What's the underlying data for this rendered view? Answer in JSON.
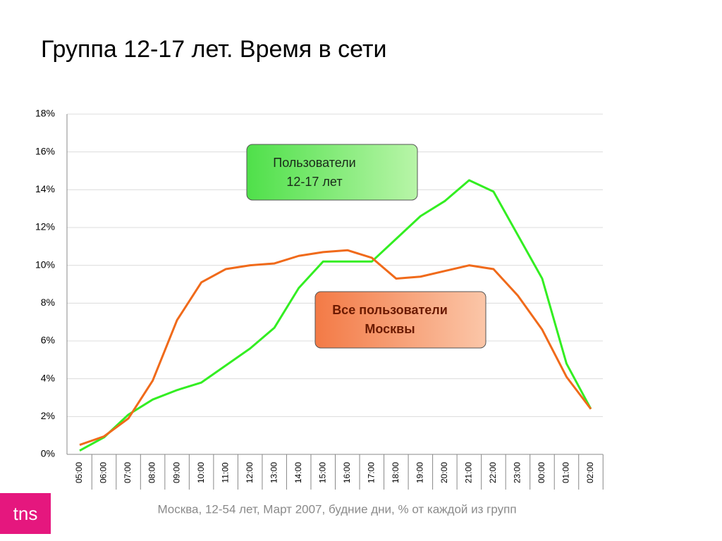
{
  "chart_data": {
    "type": "line",
    "title": "Группа 12-17 лет. Время в сети",
    "footnote": "Москва, 12-54 лет, Март 2007, будние дни, % от каждой из групп",
    "logo": "tns",
    "categories": [
      "05:00",
      "06:00",
      "07:00",
      "08:00",
      "09:00",
      "10:00",
      "11:00",
      "12:00",
      "13:00",
      "14:00",
      "15:00",
      "16:00",
      "17:00",
      "18:00",
      "19:00",
      "20:00",
      "21:00",
      "22:00",
      "23:00",
      "00:00",
      "01:00",
      "02:00"
    ],
    "series": [
      {
        "name": "Пользователи 12-17 лет",
        "color": "#33ee22",
        "values": [
          0.2,
          0.9,
          2.1,
          2.9,
          3.4,
          3.8,
          4.7,
          5.6,
          6.7,
          8.8,
          10.2,
          10.2,
          10.2,
          11.4,
          12.6,
          13.4,
          14.5,
          13.9,
          11.6,
          9.3,
          4.8,
          2.4
        ]
      },
      {
        "name": "Все пользователи Москвы",
        "color": "#f06a1a",
        "values": [
          0.5,
          0.95,
          1.9,
          3.9,
          7.1,
          9.1,
          9.8,
          10.0,
          10.1,
          10.5,
          10.7,
          10.8,
          10.4,
          9.3,
          9.4,
          9.7,
          10.0,
          9.8,
          8.4,
          6.6,
          4.1,
          2.4
        ]
      }
    ],
    "annotations": [
      {
        "lines": [
          "Пользователи",
          "12-17 лет"
        ],
        "color": "#33ee22"
      },
      {
        "lines": [
          "Все пользователи",
          "Москвы"
        ],
        "color": "#f06a1a"
      }
    ],
    "ylim": [
      0,
      18
    ],
    "yticks": [
      {
        "value": 0,
        "label": "0%"
      },
      {
        "value": 2,
        "label": "2%"
      },
      {
        "value": 4,
        "label": "4%"
      },
      {
        "value": 6,
        "label": "6%"
      },
      {
        "value": 8,
        "label": "8%"
      },
      {
        "value": 10,
        "label": "10%"
      },
      {
        "value": 12,
        "label": "12%"
      },
      {
        "value": 14,
        "label": "14%"
      },
      {
        "value": 16,
        "label": "16%"
      },
      {
        "value": 18,
        "label": "18%"
      }
    ],
    "grid": true
  }
}
